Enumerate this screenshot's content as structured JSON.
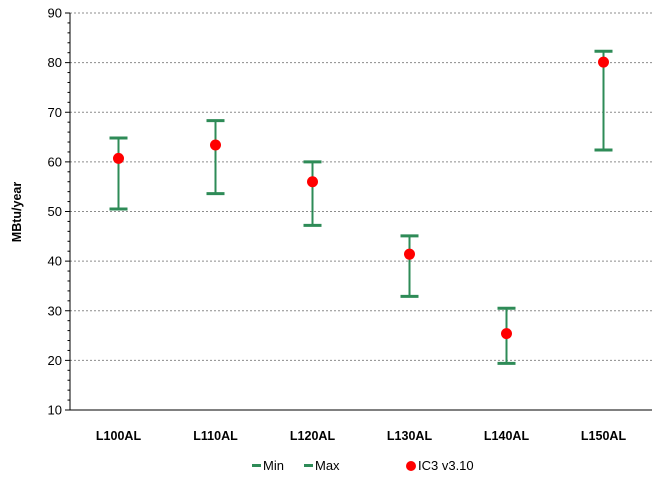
{
  "chart_data": {
    "type": "scatter",
    "categories": [
      "L100AL",
      "L110AL",
      "L120AL",
      "L130AL",
      "L140AL",
      "L150AL"
    ],
    "series": [
      {
        "name": "Min",
        "values": [
          50.5,
          53.6,
          47.2,
          32.9,
          19.4,
          62.4
        ]
      },
      {
        "name": "Max",
        "values": [
          64.8,
          68.3,
          60.0,
          45.1,
          30.5,
          82.3
        ]
      },
      {
        "name": "IC3 v3.10",
        "values": [
          60.7,
          63.4,
          56.0,
          41.4,
          25.4,
          80.1
        ]
      }
    ],
    "ylabel": "MBtu/year",
    "xlabel": "",
    "ylim": [
      10,
      90
    ],
    "yticks": [
      "10",
      "20",
      "30",
      "40",
      "50",
      "60",
      "70",
      "80",
      "90"
    ],
    "grid": "horizontal dashed",
    "legend_position": "bottom",
    "colors": {
      "range": "#2e8b57",
      "point": "#ff0000",
      "grid": "#8c8c8c",
      "axis": "#000000"
    }
  }
}
